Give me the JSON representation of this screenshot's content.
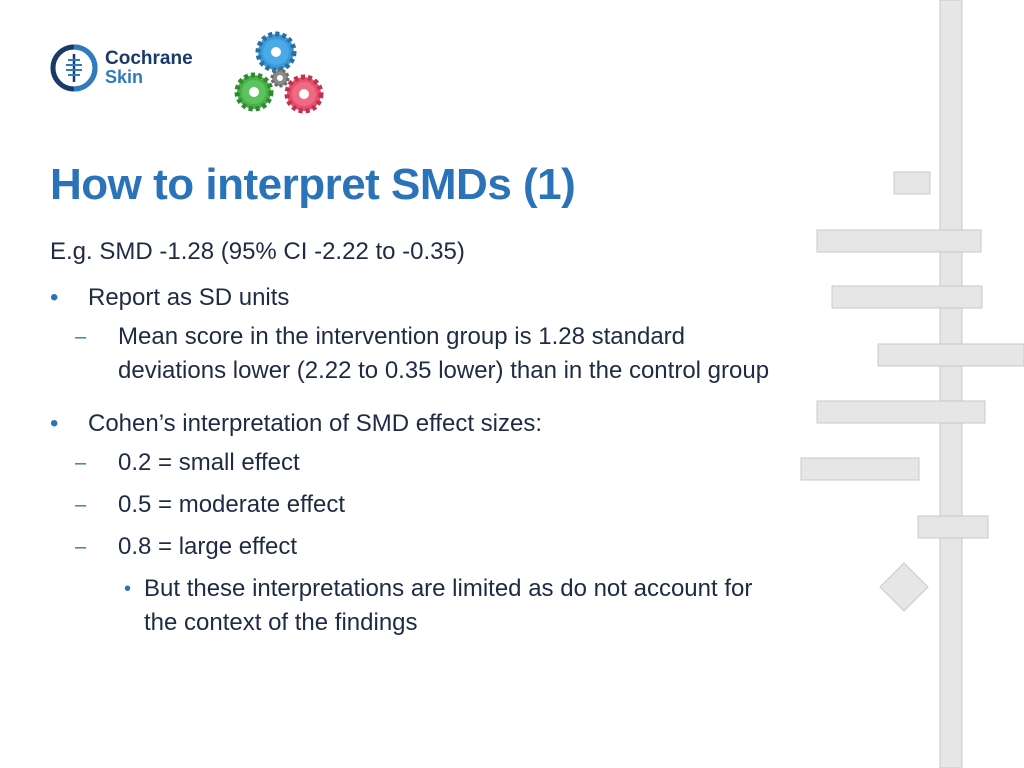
{
  "logo": {
    "line1": "Cochrane",
    "line2": "Skin"
  },
  "gears_logo": {
    "icon": "gears-logo-icon"
  },
  "title": "How to interpret SMDs (1)",
  "example": "E.g. SMD -1.28 (95% CI -2.22 to -0.35)",
  "bullet_marker": "•",
  "dash_marker": "–",
  "sections": [
    {
      "text": "Report as SD units",
      "items": [
        "Mean score in the intervention group is 1.28 standard deviations lower (2.22 to 0.35 lower) than in the control group"
      ]
    },
    {
      "text": "Cohen’s interpretation of SMD effect sizes:",
      "items": [
        "0.2 = small effect",
        "0.5 = moderate effect",
        "0.8 = large effect"
      ],
      "sub_items": [
        "But these interpretations are limited as do not account for the context of the findings"
      ]
    }
  ],
  "colors": {
    "title": "#2a73b8",
    "body": "#1f2a44",
    "decor": "#e6e6e6"
  }
}
